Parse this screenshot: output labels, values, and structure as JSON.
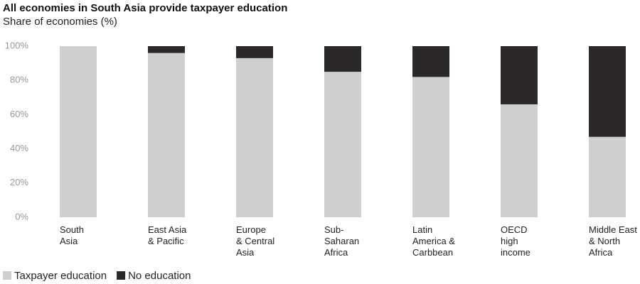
{
  "chart_data": {
    "type": "stacked_bar",
    "title": "All economies in South Asia provide taxpayer education",
    "subtitle": "Share of economies (%)",
    "categories": [
      "South\nAsia",
      "East Asia\n& Pacific",
      "Europe\n& Central\nAsia",
      "Sub-\nSaharan\nAfrica",
      "Latin\nAmerica &\nCarbbean",
      "OECD\nhigh\nincome",
      "Middle East\n& North\nAfrica"
    ],
    "series": [
      {
        "name": "Taxpayer education",
        "color": "#d0cecf",
        "values": [
          100,
          96,
          93,
          85,
          82,
          66,
          47
        ]
      },
      {
        "name": "No education",
        "color": "#2b2827",
        "values": [
          0,
          4,
          7,
          15,
          18,
          34,
          53
        ]
      }
    ],
    "ylim": [
      0,
      100
    ],
    "yticks": [
      {
        "value": 0,
        "label": "0%"
      },
      {
        "value": 20,
        "label": "20%"
      },
      {
        "value": 40,
        "label": "40%"
      },
      {
        "value": 60,
        "label": "60%"
      },
      {
        "value": 80,
        "label": "80%"
      },
      {
        "value": 100,
        "label": "100%"
      }
    ],
    "grid": false,
    "legend": "bottom-left"
  }
}
